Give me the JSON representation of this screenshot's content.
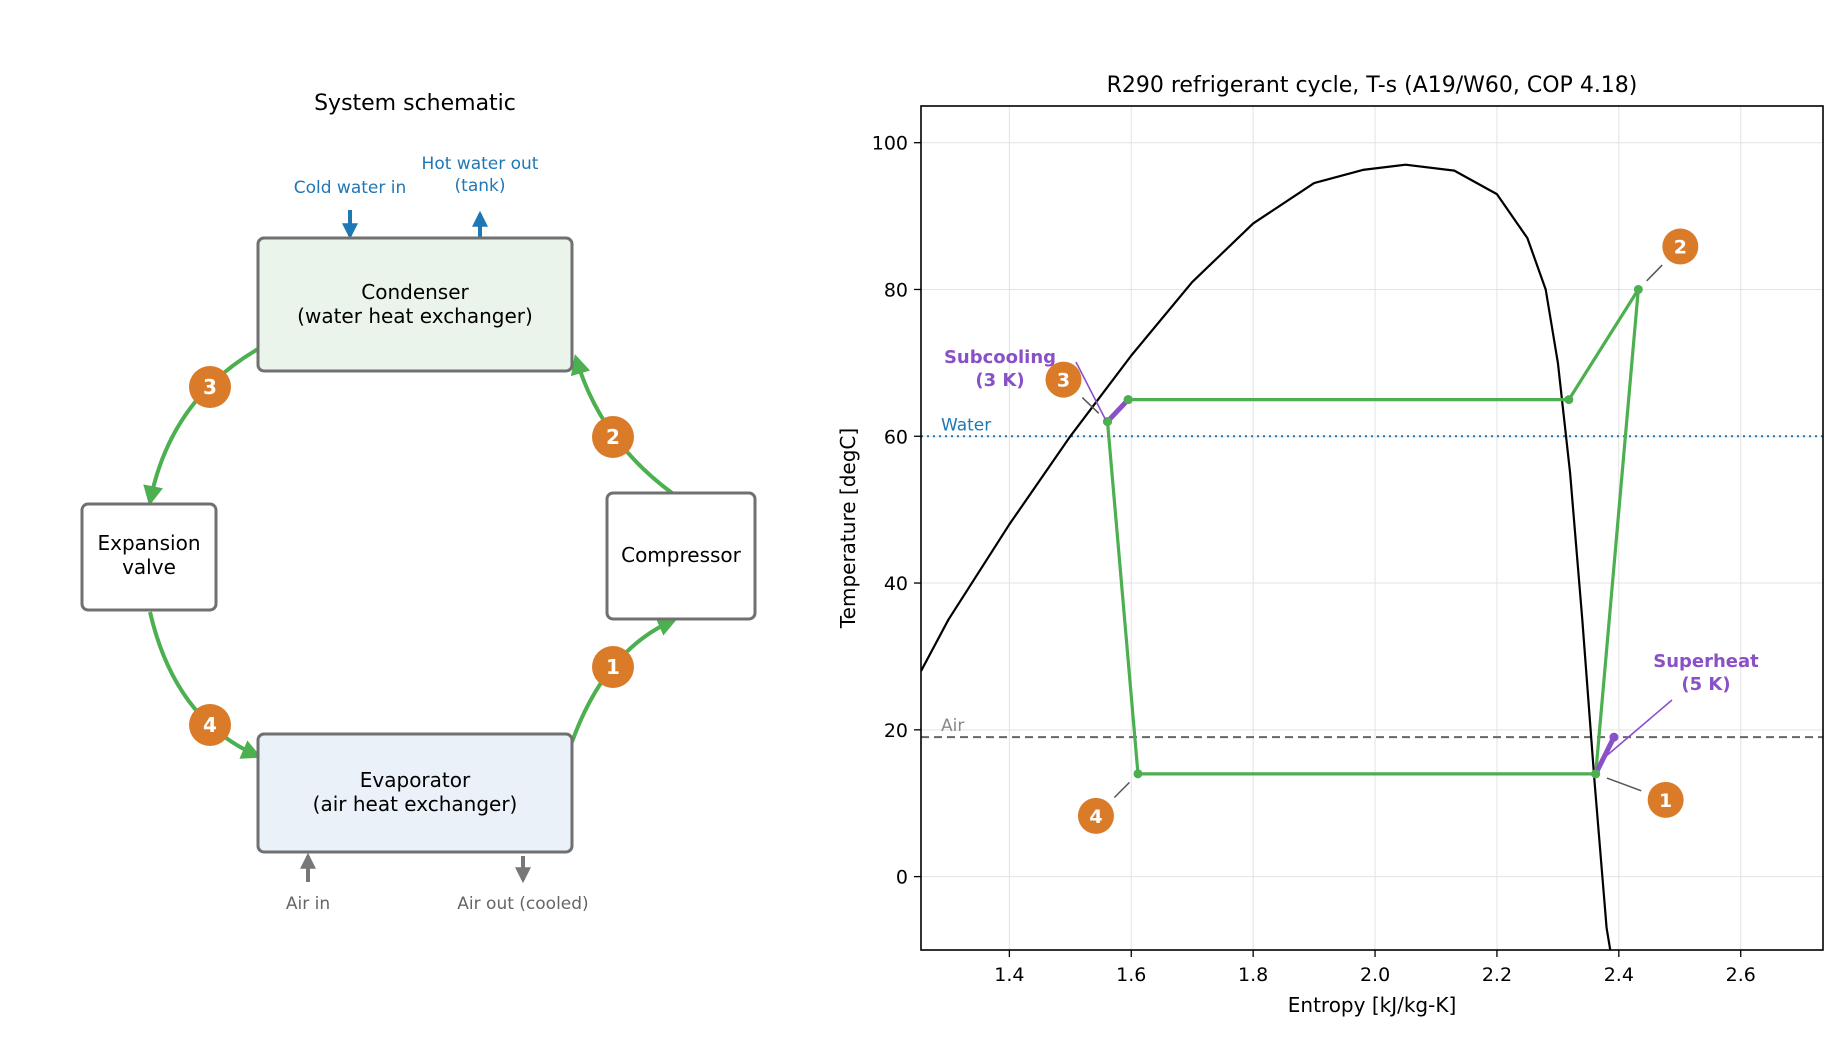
{
  "schematic": {
    "title": "System schematic",
    "cold_water_label": "Cold water in",
    "hot_water_label_line1": "Hot water out",
    "hot_water_label_line2": "(tank)",
    "condenser_line1": "Condenser",
    "condenser_line2": "(water heat exchanger)",
    "expansion_line1": "Expansion",
    "expansion_line2": "valve",
    "compressor_label": "Compressor",
    "evaporator_line1": "Evaporator",
    "evaporator_line2": "(air heat exchanger)",
    "air_in_label": "Air in",
    "air_out_label": "Air out (cooled)",
    "state_points": [
      "1",
      "2",
      "3",
      "4"
    ]
  },
  "colors": {
    "cycle_green": "#4caf50",
    "marker_orange": "#d97b29",
    "accent_purple": "#8a50c8",
    "water_blue": "#1f77b4",
    "air_gray": "#666666",
    "condenser_fill": "#eaf4ea",
    "evaporator_fill": "#eaf1f9"
  },
  "chart_data": {
    "type": "line",
    "title": "R290 refrigerant cycle, T-s (A19/W60, COP 4.18)",
    "xlabel": "Entropy [kJ/kg-K]",
    "ylabel": "Temperature [degC]",
    "xlim": [
      1.255,
      2.735
    ],
    "ylim": [
      -10,
      105
    ],
    "xticks": [
      1.4,
      1.6,
      1.8,
      2.0,
      2.2,
      2.4,
      2.6
    ],
    "yticks": [
      0,
      20,
      40,
      60,
      80,
      100
    ],
    "grid": true,
    "saturation_dome": {
      "x": [
        1.255,
        1.3,
        1.4,
        1.5,
        1.6,
        1.7,
        1.8,
        1.9,
        1.98,
        2.05,
        2.13,
        2.2,
        2.25,
        2.28,
        2.3,
        2.32,
        2.34,
        2.36,
        2.38,
        2.39
      ],
      "y": [
        28,
        35,
        48,
        60,
        71,
        81,
        89,
        94.5,
        96.3,
        97.0,
        96.2,
        93,
        87,
        80,
        70,
        55,
        35,
        13,
        -7,
        -12
      ]
    },
    "cycle": {
      "x": [
        2.362,
        2.432,
        2.318,
        1.595,
        1.561,
        1.611,
        2.362
      ],
      "y": [
        14,
        80,
        65,
        65,
        62,
        14,
        14
      ]
    },
    "state_points": [
      {
        "label": "1",
        "s": 2.362,
        "T": 14
      },
      {
        "label": "2",
        "s": 2.432,
        "T": 80
      },
      {
        "label": "3",
        "s": 1.561,
        "T": 62
      },
      {
        "label": "4",
        "s": 1.611,
        "T": 14
      }
    ],
    "subcooling_segment": {
      "x": [
        1.561,
        1.595
      ],
      "y": [
        62,
        65
      ]
    },
    "superheat_segment": {
      "x": [
        2.362,
        2.392
      ],
      "y": [
        14,
        19
      ]
    },
    "annotations": {
      "subcooling_line1": "Subcooling",
      "subcooling_line2": "(3 K)",
      "superheat_line1": "Superheat",
      "superheat_line2": "(5 K)"
    },
    "reference_lines": [
      {
        "label": "Water",
        "y": 60,
        "style": "dotted"
      },
      {
        "label": "Air",
        "y": 19,
        "style": "dashed"
      }
    ]
  }
}
